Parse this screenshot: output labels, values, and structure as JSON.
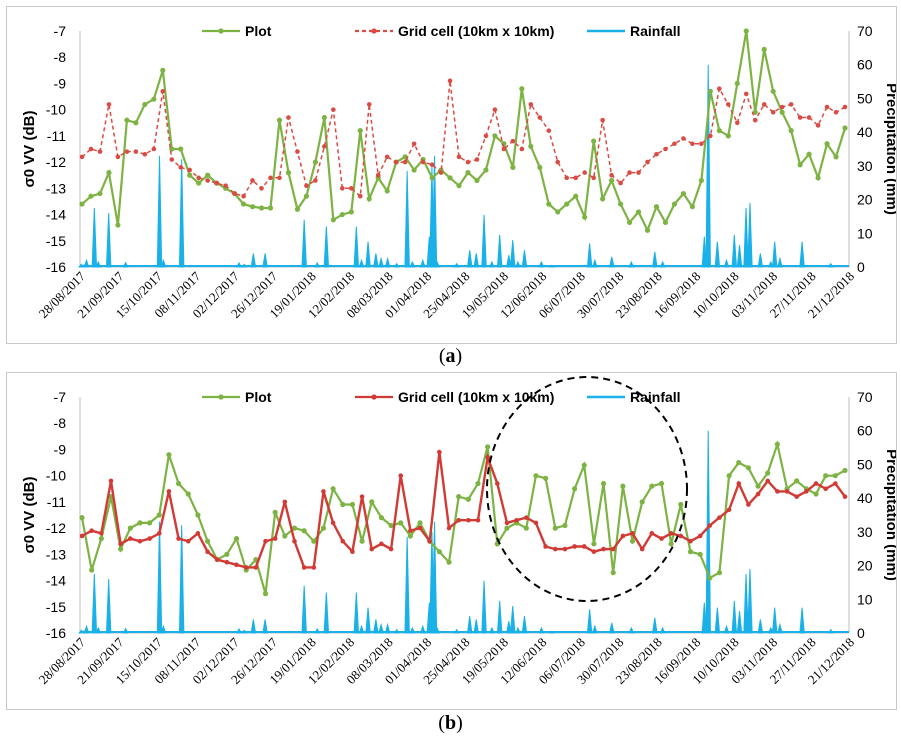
{
  "colors": {
    "plot": "#7cb342",
    "grid_a": "#d94b43",
    "grid_b": "#d23a35",
    "rainfall": "#1ab0e8",
    "axis": "#bfbfbf",
    "circle": "#000000"
  },
  "captions": {
    "a_open": "(",
    "a_letter": "a",
    "a_close": ")",
    "b_open": "(",
    "b_letter": "b",
    "b_close": ")"
  },
  "chart_data": [
    {
      "id": "a",
      "type": "line",
      "ylabel": "σ0 VV (dB)",
      "y2label": "Precipitation (mm)",
      "ylim": [
        -16,
        -7
      ],
      "y2lim": [
        0,
        70
      ],
      "yticks": [
        "-7",
        "-8",
        "-9",
        "-10",
        "-11",
        "-12",
        "-13",
        "-14",
        "-15",
        "-16"
      ],
      "y2ticks": [
        "0",
        "10",
        "20",
        "30",
        "40",
        "50",
        "60",
        "70"
      ],
      "xlim": [
        "2017-08-22",
        "2018-12-27"
      ],
      "xticks": [
        "28/08/2017",
        "21/09/2017",
        "15/10/2017",
        "08/11/2017",
        "02/12/2017",
        "26/12/2017",
        "19/01/2018",
        "12/02/2018",
        "08/03/2018",
        "01/04/2018",
        "25/04/2018",
        "19/05/2018",
        "12/06/2018",
        "06/07/2018",
        "30/07/2018",
        "23/08/2018",
        "16/09/2018",
        "10/10/2018",
        "03/11/2018",
        "27/11/2018",
        "21/12/2018"
      ],
      "legend": [
        "Plot",
        "Grid cell (10km x 10km)",
        "Rainfall"
      ],
      "legend_position": "top-center",
      "grid": false,
      "series": [
        {
          "name": "Plot",
          "style": "solid-dot",
          "y": [
            -13.6,
            -13.3,
            -13.2,
            -12.4,
            -14.4,
            -10.4,
            -10.5,
            -9.8,
            -9.6,
            -8.5,
            -11.5,
            -11.5,
            -12.5,
            -12.8,
            -12.5,
            -12.8,
            -13.0,
            -13.2,
            -13.6,
            -13.7,
            -13.75,
            -13.75,
            -10.4,
            -12.4,
            -13.8,
            -13.3,
            -12.0,
            -10.3,
            -14.2,
            -14.0,
            -13.9,
            -10.8,
            -13.4,
            -12.6,
            -13.1,
            -12.0,
            -11.8,
            -12.3,
            -11.9,
            -12.6,
            -12.3,
            -12.6,
            -12.9,
            -12.4,
            -12.7,
            -12.3,
            -11.0,
            -11.3,
            -12.2,
            -9.2,
            -11.4,
            -12.2,
            -13.6,
            -13.9,
            -13.6,
            -13.3,
            -14.1,
            -11.2,
            -13.4,
            -12.7,
            -13.6,
            -14.3,
            -13.9,
            -14.6,
            -13.7,
            -14.3,
            -13.6,
            -13.2,
            -13.7,
            -12.7,
            -9.3,
            -10.8,
            -11.0,
            -9.0,
            -7.0,
            -10.1,
            -7.7,
            -9.3,
            -10.1,
            -10.8,
            -12.1,
            -11.7,
            -12.6,
            -11.3,
            -11.8,
            -10.7
          ]
        },
        {
          "name": "Grid cell (10km x 10km)",
          "style": "dashed-dot",
          "y": [
            -11.8,
            -11.5,
            -11.6,
            -9.8,
            -11.8,
            -11.6,
            -11.6,
            -11.7,
            -11.5,
            -9.3,
            -11.9,
            -12.2,
            -12.3,
            -12.6,
            -12.7,
            -12.8,
            -12.9,
            -13.2,
            -13.3,
            -12.7,
            -13.0,
            -12.6,
            -12.6,
            -10.3,
            -11.6,
            -12.9,
            -12.7,
            -11.4,
            -10.0,
            -13.0,
            -13.0,
            -13.3,
            -9.8,
            -12.5,
            -11.8,
            -12.0,
            -12.0,
            -11.3,
            -12.0,
            -12.1,
            -12.4,
            -8.9,
            -11.8,
            -12.0,
            -11.9,
            -11.0,
            -10.0,
            -11.5,
            -11.2,
            -11.5,
            -9.8,
            -10.3,
            -10.8,
            -12.0,
            -12.6,
            -12.6,
            -12.4,
            -12.6,
            -10.4,
            -12.5,
            -12.8,
            -12.4,
            -12.4,
            -12.0,
            -11.7,
            -11.5,
            -11.3,
            -11.1,
            -11.3,
            -11.3,
            -11.0,
            -9.2,
            -9.8,
            -10.5,
            -9.4,
            -10.4,
            -9.8,
            -10.1,
            -9.9,
            -9.8,
            -10.3,
            -10.3,
            -10.6,
            -9.9,
            -10.1,
            -9.9
          ]
        }
      ],
      "rainfall": [
        [
          0.1,
          0.8
        ],
        [
          0.3,
          0.6
        ],
        [
          0.5,
          2
        ],
        [
          1.1,
          17.5
        ],
        [
          1.4,
          1.5
        ],
        [
          2.2,
          16
        ],
        [
          3.5,
          1.3
        ],
        [
          6.1,
          33
        ],
        [
          6.4,
          2
        ],
        [
          7.8,
          32
        ],
        [
          12.2,
          1.2
        ],
        [
          12.6,
          0.8
        ],
        [
          13.3,
          4
        ],
        [
          14.2,
          4
        ],
        [
          17.2,
          14
        ],
        [
          18.2,
          1.2
        ],
        [
          18.9,
          12
        ],
        [
          21.2,
          12
        ],
        [
          21.6,
          2
        ],
        [
          22.1,
          7.5
        ],
        [
          22.7,
          4
        ],
        [
          23.1,
          2.5
        ],
        [
          23.6,
          2.5
        ],
        [
          24.3,
          1
        ],
        [
          25.1,
          28.5
        ],
        [
          25.5,
          1.5
        ],
        [
          26.3,
          2
        ],
        [
          26.8,
          9
        ],
        [
          27.0,
          30
        ],
        [
          27.2,
          33
        ],
        [
          27.4,
          1.5
        ],
        [
          28.9,
          1
        ],
        [
          29.9,
          5
        ],
        [
          30.4,
          4
        ],
        [
          31.0,
          15.5
        ],
        [
          31.6,
          1.5
        ],
        [
          32.2,
          9.5
        ],
        [
          32.9,
          3.5
        ],
        [
          33.2,
          8
        ],
        [
          33.6,
          1.5
        ],
        [
          34.1,
          5
        ],
        [
          35.4,
          1.5
        ],
        [
          36.2,
          0.5
        ],
        [
          39.1,
          7
        ],
        [
          39.5,
          2
        ],
        [
          40.8,
          3
        ],
        [
          42.3,
          1.5
        ],
        [
          44.1,
          4.5
        ],
        [
          44.7,
          1.5
        ],
        [
          47.9,
          9
        ],
        [
          48.2,
          60
        ],
        [
          48.9,
          7.5
        ],
        [
          49.6,
          2
        ],
        [
          50.2,
          9.5
        ],
        [
          50.6,
          6.5
        ],
        [
          51.1,
          17.5
        ],
        [
          51.4,
          19
        ],
        [
          52.2,
          4
        ],
        [
          53.0,
          1.5
        ],
        [
          53.3,
          7.5
        ],
        [
          53.7,
          2.5
        ],
        [
          55.4,
          7.5
        ],
        [
          57.6,
          1
        ]
      ]
    },
    {
      "id": "b",
      "type": "line",
      "ylabel": "σ0 VV (dB)",
      "y2label": "Precipitation (mm)",
      "ylim": [
        -16,
        -7
      ],
      "y2lim": [
        0,
        70
      ],
      "yticks": [
        "-7",
        "-8",
        "-9",
        "-10",
        "-11",
        "-12",
        "-13",
        "-14",
        "-15",
        "-16"
      ],
      "y2ticks": [
        "0",
        "10",
        "20",
        "30",
        "40",
        "50",
        "60",
        "70"
      ],
      "xlim": [
        "2017-08-22",
        "2018-12-27"
      ],
      "xticks": [
        "28/08/2017",
        "21/09/2017",
        "15/10/2017",
        "08/11/2017",
        "02/12/2017",
        "26/12/2017",
        "19/01/2018",
        "12/02/2018",
        "08/03/2018",
        "01/04/2018",
        "25/04/2018",
        "19/05/2018",
        "12/06/2018",
        "06/07/2018",
        "30/07/2018",
        "23/08/2018",
        "16/09/2018",
        "10/10/2018",
        "03/11/2018",
        "27/11/2018",
        "21/12/2018"
      ],
      "legend": [
        "Plot",
        "Grid cell (10km x 10km)",
        "Rainfall"
      ],
      "legend_position": "top-center",
      "grid": false,
      "annotation": "dashed circle",
      "series": [
        {
          "name": "Plot",
          "style": "solid-dot",
          "y": [
            -11.6,
            -13.6,
            -12.4,
            -10.8,
            -12.8,
            -12.0,
            -11.8,
            -11.8,
            -11.5,
            -9.2,
            -10.3,
            -10.7,
            -11.5,
            -12.5,
            -13.2,
            -13.0,
            -12.4,
            -13.6,
            -13.2,
            -14.5,
            -11.4,
            -12.3,
            -12.0,
            -12.1,
            -12.5,
            -12.0,
            -10.5,
            -11.1,
            -11.1,
            -12.5,
            -11.0,
            -11.6,
            -11.9,
            -11.8,
            -12.3,
            -11.8,
            -12.5,
            -12.9,
            -13.3,
            -10.8,
            -10.9,
            -10.3,
            -8.9,
            -12.6,
            -12.0,
            -11.8,
            -12.0,
            -10.0,
            -10.1,
            -12.0,
            -11.9,
            -10.5,
            -9.6,
            -12.6,
            -10.3,
            -13.7,
            -10.4,
            -12.5,
            -11.0,
            -10.4,
            -10.3,
            -12.6,
            -11.1,
            -12.9,
            -13.0,
            -13.9,
            -13.7,
            -10.0,
            -9.5,
            -9.7,
            -10.4,
            -9.9,
            -8.8,
            -10.5,
            -10.2,
            -10.5,
            -10.7,
            -10.0,
            -10.0,
            -9.8
          ]
        },
        {
          "name": "Grid cell (10km x 10km)",
          "style": "solid-dot",
          "y": [
            -12.3,
            -12.1,
            -12.2,
            -10.2,
            -12.6,
            -12.4,
            -12.5,
            -12.4,
            -12.2,
            -10.6,
            -12.4,
            -12.5,
            -12.2,
            -12.9,
            -13.2,
            -13.3,
            -13.4,
            -13.5,
            -13.5,
            -12.5,
            -12.4,
            -11.0,
            -12.5,
            -13.5,
            -13.5,
            -10.6,
            -11.8,
            -12.5,
            -12.9,
            -10.8,
            -12.8,
            -12.6,
            -12.8,
            -10.0,
            -12.1,
            -12.0,
            -12.5,
            -9.1,
            -12.0,
            -11.7,
            -11.7,
            -11.7,
            -9.3,
            -10.3,
            -11.8,
            -11.7,
            -11.6,
            -11.8,
            -12.7,
            -12.8,
            -12.8,
            -12.7,
            -12.7,
            -12.9,
            -12.8,
            -12.8,
            -12.3,
            -12.2,
            -12.8,
            -12.2,
            -12.4,
            -12.2,
            -12.3,
            -12.5,
            -12.3,
            -11.9,
            -11.6,
            -11.3,
            -10.3,
            -11.1,
            -10.7,
            -10.2,
            -10.6,
            -10.6,
            -10.8,
            -10.6,
            -10.3,
            -10.5,
            -10.3,
            -10.8
          ]
        }
      ],
      "rainfall": [
        [
          0.1,
          0.8
        ],
        [
          0.3,
          0.6
        ],
        [
          0.5,
          2
        ],
        [
          1.1,
          17.5
        ],
        [
          1.4,
          1.5
        ],
        [
          2.2,
          16
        ],
        [
          3.5,
          1.3
        ],
        [
          6.1,
          33
        ],
        [
          6.4,
          2
        ],
        [
          7.8,
          32
        ],
        [
          12.2,
          1.2
        ],
        [
          12.6,
          0.8
        ],
        [
          13.3,
          4
        ],
        [
          14.2,
          4
        ],
        [
          17.2,
          14
        ],
        [
          18.2,
          1.2
        ],
        [
          18.9,
          12
        ],
        [
          21.2,
          12
        ],
        [
          21.6,
          2
        ],
        [
          22.1,
          7.5
        ],
        [
          22.7,
          4
        ],
        [
          23.1,
          2.5
        ],
        [
          23.6,
          2.5
        ],
        [
          24.3,
          1
        ],
        [
          25.1,
          28.5
        ],
        [
          25.5,
          1.5
        ],
        [
          26.3,
          2
        ],
        [
          26.8,
          9
        ],
        [
          27.0,
          30
        ],
        [
          27.2,
          33
        ],
        [
          27.4,
          1.5
        ],
        [
          28.9,
          1
        ],
        [
          29.9,
          5
        ],
        [
          30.4,
          4
        ],
        [
          31.0,
          15.5
        ],
        [
          31.6,
          1.5
        ],
        [
          32.2,
          9.5
        ],
        [
          32.9,
          3.5
        ],
        [
          33.2,
          8
        ],
        [
          33.6,
          1.5
        ],
        [
          34.1,
          5
        ],
        [
          35.4,
          1.5
        ],
        [
          36.2,
          0.5
        ],
        [
          39.1,
          7
        ],
        [
          39.5,
          2
        ],
        [
          40.8,
          3
        ],
        [
          42.3,
          1.5
        ],
        [
          44.1,
          4.5
        ],
        [
          44.7,
          1.5
        ],
        [
          47.9,
          9
        ],
        [
          48.2,
          60
        ],
        [
          48.9,
          7.5
        ],
        [
          49.6,
          2
        ],
        [
          50.2,
          9.5
        ],
        [
          50.6,
          6.5
        ],
        [
          51.1,
          17.5
        ],
        [
          51.4,
          19
        ],
        [
          52.2,
          4
        ],
        [
          53.0,
          1.5
        ],
        [
          53.3,
          7.5
        ],
        [
          53.7,
          2.5
        ],
        [
          55.4,
          7.5
        ],
        [
          57.6,
          1
        ]
      ]
    }
  ]
}
